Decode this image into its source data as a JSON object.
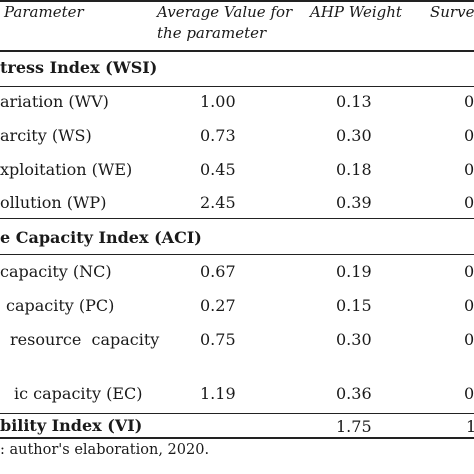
{
  "headers": {
    "parameter": "Parameter",
    "average_line1": "Average Value for",
    "average_line2": "the parameter",
    "ahp_weight": "AHP Weight",
    "survey": "Surve"
  },
  "sections": {
    "wsi": "tress Index (WSI)",
    "aci": "e Capacity Index (ACI)",
    "vi": "bility Index (VI)"
  },
  "rows": [
    {
      "param": "ariation (WV)",
      "avg": "1.00",
      "ahp": "0.13",
      "survey": "0"
    },
    {
      "param": "arcity (WS)",
      "avg": "0.73",
      "ahp": "0.30",
      "survey": "0"
    },
    {
      "param": "xploitation (WE)",
      "avg": "0.45",
      "ahp": "0.18",
      "survey": "0"
    },
    {
      "param": "ollution (WP)",
      "avg": "2.45",
      "ahp": "0.39",
      "survey": "0"
    },
    {
      "param": "capacity (NC)",
      "avg": "0.67",
      "ahp": "0.19",
      "survey": "0"
    },
    {
      "param": "capacity (PC)",
      "avg": "0.27",
      "ahp": "0.15",
      "survey": "0"
    },
    {
      "param": "resource  capacity",
      "avg": "0.75",
      "ahp": "0.30",
      "survey": "0"
    },
    {
      "param": "ic capacity (EC)",
      "avg": "1.19",
      "ahp": "0.36",
      "survey": "0"
    }
  ],
  "vi_row": {
    "ahp": "1.75",
    "survey": "1"
  },
  "source_note": ": author's elaboration, 2020."
}
